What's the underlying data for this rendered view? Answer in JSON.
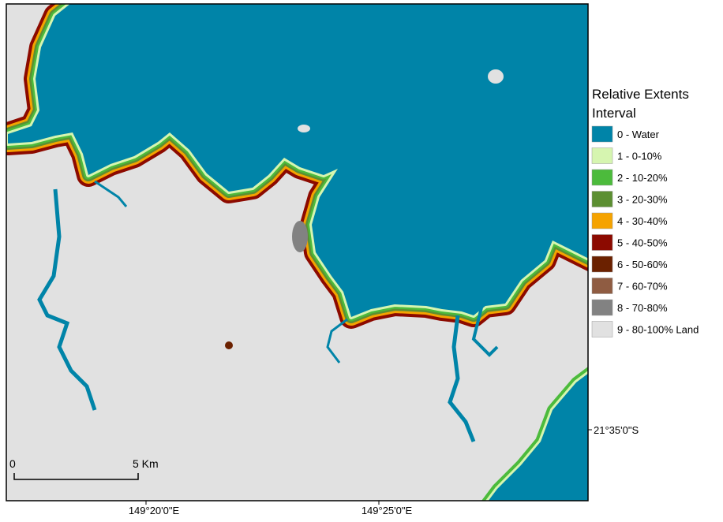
{
  "legend": {
    "title_lines": [
      "Relative Extents",
      "Interval"
    ],
    "items": [
      {
        "label": "0 - Water",
        "color": "#0084a8"
      },
      {
        "label": "1 - 0-10%",
        "color": "#d6f5b0"
      },
      {
        "label": "2 - 10-20%",
        "color": "#4cbb3c"
      },
      {
        "label": "3 - 20-30%",
        "color": "#5c8f32"
      },
      {
        "label": "4 - 30-40%",
        "color": "#f5a300"
      },
      {
        "label": "5 - 40-50%",
        "color": "#8c0a00"
      },
      {
        "label": "6 - 50-60%",
        "color": "#6b2100"
      },
      {
        "label": "7 - 60-70%",
        "color": "#8f5c42"
      },
      {
        "label": "8 - 70-80%",
        "color": "#828282"
      },
      {
        "label": "9 - 80-100% Land",
        "color": "#e1e1e1"
      }
    ]
  },
  "scale_bar": {
    "start": "0",
    "end": "5 Km"
  },
  "coordinates": {
    "longitude": [
      "149°20'0\"E",
      "149°25'0\"E"
    ],
    "latitude": [
      "21°35'0\"S"
    ]
  }
}
